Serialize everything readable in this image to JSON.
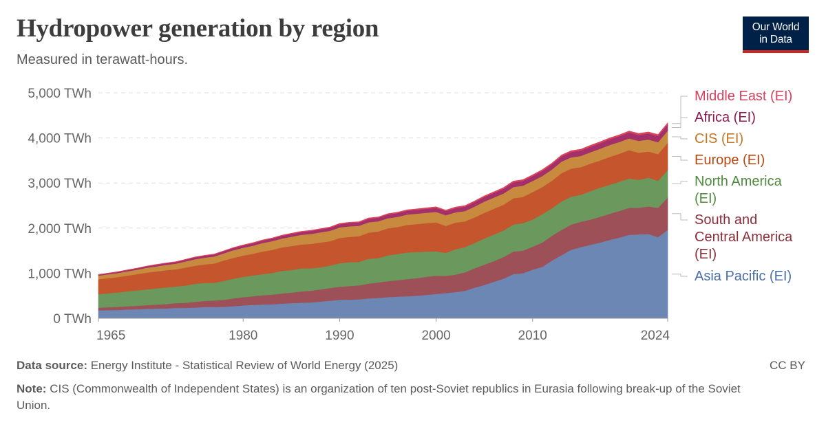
{
  "header": {
    "title": "Hydropower generation by region",
    "subtitle": "Measured in terawatt-hours."
  },
  "logo": {
    "line1": "Our World",
    "line2": "in Data"
  },
  "footer": {
    "source_label": "Data source:",
    "source_text": "Energy Institute - Statistical Review of World Energy (2025)",
    "note_label": "Note:",
    "note_text": "CIS (Commonwealth of Independent States) is an organization of ten post-Soviet republics in Eurasia following break-up of the Soviet Union.",
    "license": "CC BY"
  },
  "chart_data": {
    "type": "area",
    "stacked": true,
    "title": "Hydropower generation by region",
    "subtitle": "Measured in terawatt-hours.",
    "x_tick_labels": [
      "1965",
      "1980",
      "1990",
      "2000",
      "2010",
      "2024"
    ],
    "x_range": [
      1965,
      2024
    ],
    "y_range": [
      0,
      5000
    ],
    "y_ticks": [
      0,
      1000,
      2000,
      3000,
      4000,
      5000
    ],
    "y_tick_labels": [
      "0 TWh",
      "1,000 TWh",
      "2,000 TWh",
      "3,000 TWh",
      "4,000 TWh",
      "5,000 TWh"
    ],
    "grid": "horizontal dashed",
    "legend_placement": "right",
    "years": [
      1965,
      1966,
      1967,
      1968,
      1969,
      1970,
      1971,
      1972,
      1973,
      1974,
      1975,
      1976,
      1977,
      1978,
      1979,
      1980,
      1981,
      1982,
      1983,
      1984,
      1985,
      1986,
      1987,
      1988,
      1989,
      1990,
      1991,
      1992,
      1993,
      1994,
      1995,
      1996,
      1997,
      1998,
      1999,
      2000,
      2001,
      2002,
      2003,
      2004,
      2005,
      2006,
      2007,
      2008,
      2009,
      2010,
      2011,
      2012,
      2013,
      2014,
      2015,
      2016,
      2017,
      2018,
      2019,
      2020,
      2021,
      2022,
      2023,
      2024
    ],
    "series": [
      {
        "name": "Asia Pacific (EI)",
        "color": "#6d87b5",
        "values": [
          175,
          180,
          185,
          195,
          200,
          210,
          215,
          220,
          230,
          230,
          240,
          250,
          250,
          255,
          270,
          285,
          295,
          305,
          310,
          325,
          335,
          345,
          350,
          370,
          390,
          410,
          415,
          420,
          440,
          450,
          470,
          480,
          490,
          500,
          520,
          540,
          560,
          580,
          610,
          680,
          740,
          810,
          880,
          980,
          1000,
          1080,
          1140,
          1280,
          1400,
          1520,
          1580,
          1630,
          1680,
          1740,
          1790,
          1850,
          1860,
          1870,
          1800,
          1960
        ]
      },
      {
        "name": "South and Central America (EI)",
        "color": "#9e5058",
        "values": [
          60,
          65,
          68,
          72,
          78,
          82,
          88,
          95,
          105,
          115,
          125,
          135,
          145,
          155,
          170,
          185,
          195,
          205,
          215,
          225,
          235,
          250,
          260,
          270,
          280,
          290,
          300,
          310,
          330,
          345,
          355,
          365,
          380,
          390,
          400,
          405,
          380,
          390,
          410,
          430,
          450,
          460,
          480,
          500,
          500,
          510,
          540,
          550,
          560,
          560,
          560,
          560,
          570,
          580,
          590,
          600,
          590,
          610,
          650,
          720
        ]
      },
      {
        "name": "North America (EI)",
        "color": "#6b985d",
        "values": [
          300,
          310,
          320,
          330,
          340,
          350,
          360,
          370,
          370,
          380,
          400,
          400,
          390,
          420,
          440,
          450,
          460,
          470,
          480,
          500,
          500,
          510,
          500,
          490,
          500,
          520,
          530,
          520,
          550,
          540,
          570,
          580,
          590,
          580,
          560,
          540,
          510,
          560,
          560,
          560,
          580,
          590,
          590,
          600,
          610,
          600,
          630,
          610,
          630,
          620,
          600,
          630,
          650,
          640,
          650,
          650,
          620,
          640,
          600,
          610
        ]
      },
      {
        "name": "Europe (EI)",
        "color": "#c4552c",
        "values": [
          330,
          335,
          340,
          350,
          360,
          370,
          375,
          380,
          380,
          400,
          400,
          410,
          430,
          450,
          460,
          470,
          480,
          500,
          510,
          520,
          530,
          530,
          540,
          550,
          540,
          560,
          560,
          570,
          580,
          590,
          600,
          600,
          610,
          620,
          630,
          640,
          600,
          590,
          570,
          570,
          570,
          570,
          570,
          580,
          580,
          610,
          600,
          610,
          630,
          620,
          610,
          610,
          600,
          620,
          620,
          630,
          600,
          580,
          590,
          600
        ]
      },
      {
        "name": "CIS (EI)",
        "color": "#c88a3e",
        "values": [
          80,
          85,
          90,
          95,
          100,
          110,
          115,
          120,
          125,
          135,
          145,
          150,
          155,
          160,
          170,
          175,
          180,
          190,
          195,
          200,
          210,
          215,
          220,
          225,
          230,
          235,
          235,
          230,
          230,
          225,
          225,
          225,
          230,
          230,
          230,
          235,
          235,
          230,
          230,
          240,
          250,
          250,
          250,
          250,
          250,
          245,
          245,
          250,
          255,
          250,
          250,
          255,
          260,
          265,
          260,
          260,
          265,
          265,
          265,
          270
        ]
      },
      {
        "name": "Africa (EI)",
        "color": "#a3306a",
        "values": [
          20,
          22,
          24,
          26,
          28,
          30,
          32,
          34,
          36,
          38,
          40,
          42,
          44,
          46,
          48,
          50,
          52,
          54,
          56,
          58,
          60,
          62,
          64,
          66,
          68,
          70,
          72,
          74,
          76,
          78,
          80,
          82,
          84,
          86,
          88,
          90,
          92,
          94,
          96,
          98,
          100,
          102,
          104,
          106,
          108,
          110,
          112,
          114,
          116,
          118,
          120,
          122,
          124,
          126,
          128,
          130,
          132,
          134,
          136,
          140
        ]
      },
      {
        "name": "Middle East (EI)",
        "color": "#d9445a",
        "values": [
          5,
          5,
          6,
          6,
          7,
          7,
          8,
          8,
          9,
          9,
          10,
          10,
          11,
          11,
          12,
          12,
          13,
          13,
          14,
          14,
          15,
          15,
          16,
          16,
          17,
          17,
          18,
          18,
          19,
          19,
          20,
          20,
          21,
          21,
          22,
          22,
          23,
          23,
          24,
          24,
          25,
          25,
          26,
          26,
          27,
          27,
          28,
          28,
          29,
          29,
          30,
          30,
          31,
          31,
          32,
          32,
          33,
          33,
          34,
          34
        ]
      }
    ],
    "legend": [
      {
        "label": "Middle East (EI)",
        "color": "#d63f5e"
      },
      {
        "label": "Africa (EI)",
        "color": "#8a1a50"
      },
      {
        "label": "CIS (EI)",
        "color": "#c27623"
      },
      {
        "label": "Europe (EI)",
        "color": "#b84712"
      },
      {
        "label": "North America (EI)",
        "color": "#4f8a3d"
      },
      {
        "label": "South and Central America (EI)",
        "color": "#8a2e3a"
      },
      {
        "label": "Asia Pacific (EI)",
        "color": "#4a6ea8"
      }
    ]
  }
}
